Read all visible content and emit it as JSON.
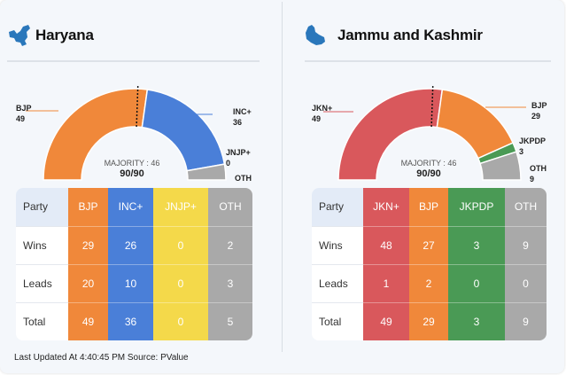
{
  "states": [
    {
      "name": "Haryana",
      "icon": "haryana-map-icon",
      "majority_label": "MAJORITY : 46",
      "majority": 46,
      "total_seats": 90,
      "counted_label": "90/90",
      "parties": [
        {
          "name": "BJP",
          "seats": 49,
          "label_value": "49",
          "color": "#f0883a"
        },
        {
          "name": "INC+",
          "seats": 36,
          "label_value": "36",
          "color": "#4a7fd8"
        },
        {
          "name": "JNJP+",
          "seats": 0,
          "label_value": "0",
          "color": "#f4d94a"
        },
        {
          "name": "OTH",
          "seats": 5,
          "label_value": "",
          "color": "#a9a9a9"
        }
      ],
      "table": {
        "header": "Party",
        "rows": [
          {
            "label": "Wins",
            "values": [
              "29",
              "26",
              "0",
              "2"
            ]
          },
          {
            "label": "Leads",
            "values": [
              "20",
              "10",
              "0",
              "3"
            ]
          },
          {
            "label": "Total",
            "values": [
              "49",
              "36",
              "0",
              "5"
            ]
          }
        ]
      }
    },
    {
      "name": "Jammu and Kashmir",
      "icon": "jammu-kashmir-map-icon",
      "majority_label": "MAJORITY : 46",
      "majority": 46,
      "total_seats": 90,
      "counted_label": "90/90",
      "parties": [
        {
          "name": "JKN+",
          "seats": 49,
          "label_value": "49",
          "color": "#d9585c"
        },
        {
          "name": "BJP",
          "seats": 29,
          "label_value": "29",
          "color": "#f0883a"
        },
        {
          "name": "JKPDP",
          "seats": 3,
          "label_value": "3",
          "color": "#4a9a55"
        },
        {
          "name": "OTH",
          "seats": 9,
          "label_value": "9",
          "color": "#a9a9a9"
        }
      ],
      "table": {
        "header": "Party",
        "rows": [
          {
            "label": "Wins",
            "values": [
              "48",
              "27",
              "3",
              "9"
            ]
          },
          {
            "label": "Leads",
            "values": [
              "1",
              "2",
              "0",
              "0"
            ]
          },
          {
            "label": "Total",
            "values": [
              "49",
              "29",
              "3",
              "9"
            ]
          }
        ]
      }
    }
  ],
  "footer": "Last Updated At 4:40:45 PM Source: PValue"
}
